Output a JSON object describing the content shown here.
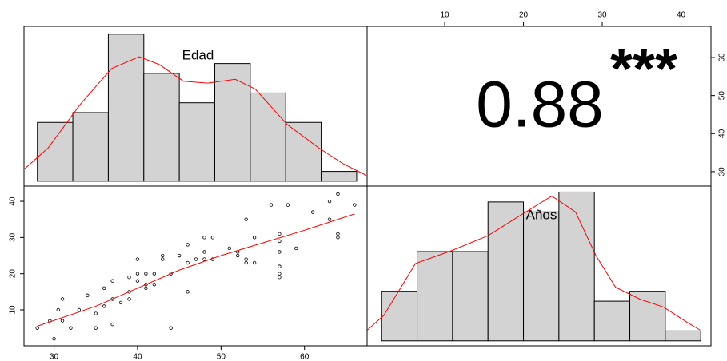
{
  "chart_data": [
    {
      "type": "histogram",
      "label": "Edad",
      "bins": [
        28,
        32.25,
        36.5,
        40.75,
        45,
        49.25,
        53.5,
        57.75,
        62,
        66.25
      ],
      "values": [
        6,
        7,
        15,
        11,
        8,
        12,
        9,
        6,
        1
      ],
      "density": {
        "x": [
          26.4,
          29.3,
          33.1,
          36.9,
          40.2,
          42.6,
          45.5,
          48.4,
          51.7,
          54.1,
          57.9,
          61.7,
          64.6,
          67.4
        ],
        "y": [
          1.2,
          3.4,
          7.8,
          11.5,
          12.7,
          11.9,
          10.2,
          10,
          10.4,
          9.4,
          5.8,
          3.4,
          1.8,
          0.6
        ]
      },
      "xlim": [
        26.4,
        67.5
      ],
      "ylim": [
        -0.5,
        15.8
      ],
      "color": "#d3d3d3",
      "line_color": "#ff0000"
    },
    {
      "type": "correlation",
      "value": 0.88,
      "significance": "***",
      "significance_color": "#e05075",
      "xlim": [
        0.15,
        43.8
      ],
      "xticks": [
        10,
        20,
        30,
        40
      ],
      "ylim": [
        26.2,
        68.2
      ],
      "yticks": [
        30,
        40,
        50,
        60
      ]
    },
    {
      "type": "scatter",
      "x": [
        28,
        29.5,
        30.5,
        30,
        31,
        31,
        32,
        33,
        34,
        35,
        35,
        36,
        36,
        37,
        37,
        37,
        38,
        39,
        39,
        39,
        40,
        40,
        40,
        41,
        41,
        41,
        42,
        42,
        43,
        43,
        44,
        44,
        45,
        46,
        46,
        46,
        47,
        48,
        48,
        48,
        49,
        49,
        51,
        52,
        52,
        53,
        53,
        53,
        54,
        54,
        56,
        57,
        57,
        57,
        57,
        57,
        57,
        58,
        59,
        61,
        63,
        63,
        64,
        64,
        64,
        66
      ],
      "values": [
        5,
        7,
        10,
        2,
        7,
        13,
        5,
        10,
        14,
        5,
        9,
        11,
        16,
        13,
        18,
        6,
        12,
        13,
        15,
        19,
        18,
        20,
        24,
        16,
        17,
        20,
        17,
        20,
        24,
        25,
        5,
        20,
        25,
        15,
        23,
        28,
        24,
        24,
        26,
        30,
        24,
        30,
        27,
        25,
        26,
        23,
        24,
        35,
        30,
        23,
        39,
        20,
        22,
        26,
        29,
        31,
        19,
        39,
        27,
        37,
        40,
        35,
        42,
        30,
        31,
        39
      ],
      "fit": {
        "x": [
          28,
          35,
          40,
          45,
          50,
          55,
          60,
          66
        ],
        "y": [
          5.5,
          11,
          16,
          21,
          25,
          28.5,
          32,
          36.5
        ]
      },
      "xlim": [
        26.4,
        67.5
      ],
      "xticks": [
        30,
        40,
        50,
        60
      ],
      "ylim": [
        0.07,
        44.2
      ],
      "yticks": [
        10,
        20,
        30,
        40
      ],
      "line_color": "#ff0000"
    },
    {
      "type": "histogram",
      "label": "Años",
      "bins": [
        2,
        6.5,
        11,
        15.5,
        20,
        24.5,
        29,
        33.5,
        38,
        42.5
      ],
      "values": [
        5,
        9,
        9,
        14,
        13,
        15,
        4,
        5,
        1
      ],
      "density": {
        "x": [
          0.2,
          2.3,
          6.3,
          10.9,
          15.5,
          19.5,
          23.6,
          26.6,
          29.2,
          31.7,
          34.8,
          37.8,
          40.9,
          42.4
        ],
        "y": [
          1.1,
          2.6,
          7.8,
          9.1,
          10.6,
          12.6,
          14.6,
          13,
          8.6,
          5.4,
          4.2,
          3.4,
          1.8,
          1.1
        ]
      },
      "xlim": [
        0.15,
        43.8
      ],
      "ylim": [
        -0.5,
        15.6
      ],
      "color": "#d3d3d3",
      "line_color": "#ff0000"
    }
  ]
}
